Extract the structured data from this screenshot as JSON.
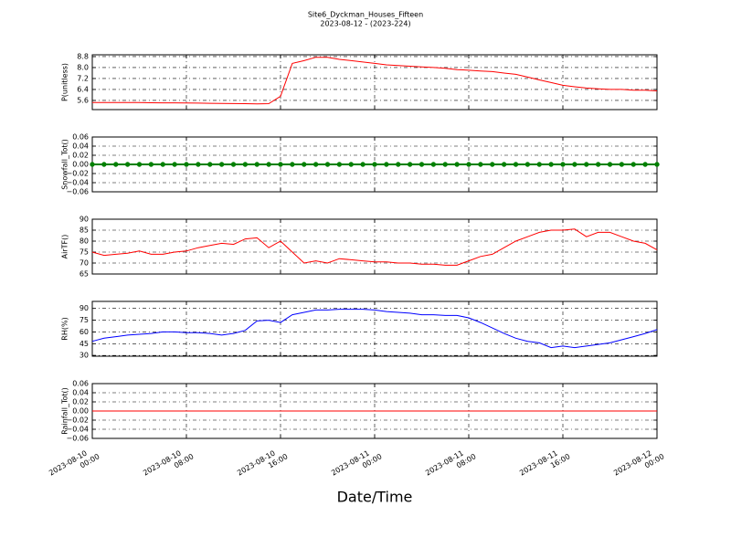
{
  "title": "Site6_Dyckman_Houses_Fifteen",
  "subtitle": "2023-08-12 - (2023-224)",
  "xlabel": "Date/Time",
  "x": [
    "2023-08-10 00:00",
    "2023-08-10 01:00",
    "2023-08-10 02:00",
    "2023-08-10 03:00",
    "2023-08-10 04:00",
    "2023-08-10 05:00",
    "2023-08-10 06:00",
    "2023-08-10 07:00",
    "2023-08-10 08:00",
    "2023-08-10 09:00",
    "2023-08-10 10:00",
    "2023-08-10 11:00",
    "2023-08-10 12:00",
    "2023-08-10 13:00",
    "2023-08-10 14:00",
    "2023-08-10 15:00",
    "2023-08-10 16:00",
    "2023-08-10 17:00",
    "2023-08-10 18:00",
    "2023-08-10 19:00",
    "2023-08-10 20:00",
    "2023-08-10 21:00",
    "2023-08-10 22:00",
    "2023-08-10 23:00",
    "2023-08-11 00:00",
    "2023-08-11 01:00",
    "2023-08-11 02:00",
    "2023-08-11 03:00",
    "2023-08-11 04:00",
    "2023-08-11 05:00",
    "2023-08-11 06:00",
    "2023-08-11 07:00",
    "2023-08-11 08:00",
    "2023-08-11 09:00",
    "2023-08-11 10:00",
    "2023-08-11 11:00",
    "2023-08-11 12:00",
    "2023-08-11 13:00",
    "2023-08-11 14:00",
    "2023-08-11 15:00",
    "2023-08-11 16:00",
    "2023-08-11 17:00",
    "2023-08-11 18:00",
    "2023-08-11 19:00",
    "2023-08-11 20:00",
    "2023-08-11 21:00",
    "2023-08-11 22:00",
    "2023-08-11 23:00",
    "2023-08-12 00:00"
  ],
  "xlim": [
    "2023-08-10 00:00",
    "2023-08-12 00:00"
  ],
  "xticks": [
    "2023-08-10 00:00",
    "2023-08-10 08:00",
    "2023-08-10 16:00",
    "2023-08-11 00:00",
    "2023-08-11 08:00",
    "2023-08-11 16:00",
    "2023-08-12 00:00"
  ],
  "grid": true,
  "chart_data": [
    {
      "type": "line",
      "ylabel": "P(unitless)",
      "ylim": [
        4.93,
        8.93
      ],
      "yticks": [
        5.6,
        6.4,
        7.2,
        {
          "value": 8,
          "label": "8.0"
        },
        8.8
      ],
      "series": [
        {
          "color": "#ff0000",
          "values": [
            5.45,
            5.45,
            5.44,
            5.45,
            5.44,
            5.43,
            5.42,
            5.42,
            5.41,
            5.4,
            5.39,
            5.38,
            5.37,
            5.36,
            5.35,
            5.36,
            5.9,
            8.3,
            8.5,
            8.75,
            8.75,
            8.6,
            8.5,
            8.4,
            8.3,
            8.2,
            8.15,
            8.1,
            8.05,
            8.0,
            7.95,
            7.85,
            7.8,
            7.75,
            7.7,
            7.6,
            7.5,
            7.3,
            7.1,
            6.9,
            6.7,
            6.6,
            6.5,
            6.45,
            6.4,
            6.4,
            6.35,
            6.35,
            6.3
          ]
        }
      ]
    },
    {
      "type": "line",
      "ylabel": "Snowfall_Tot()",
      "ylim": [
        -0.06,
        0.06
      ],
      "markers": true,
      "yticks": [
        {
          "value": -0.06,
          "label": "−0.06"
        },
        {
          "value": -0.04,
          "label": "−0.04"
        },
        {
          "value": -0.02,
          "label": "−0.02"
        },
        {
          "value": 0,
          "label": "0.00"
        },
        0.02,
        0.04,
        0.06
      ],
      "series": [
        {
          "color": "#008000",
          "values": [
            0,
            0,
            0,
            0,
            0,
            0,
            0,
            0,
            0,
            0,
            0,
            0,
            0,
            0,
            0,
            0,
            0,
            0,
            0,
            0,
            0,
            0,
            0,
            0,
            0,
            0,
            0,
            0,
            0,
            0,
            0,
            0,
            0,
            0,
            0,
            0,
            0,
            0,
            0,
            0,
            0,
            0,
            0,
            0,
            0,
            0,
            0,
            0,
            0
          ]
        }
      ]
    },
    {
      "type": "line",
      "ylabel": "AirTF()",
      "ylim": [
        65,
        90
      ],
      "yticks": [
        65,
        70,
        75,
        80,
        85,
        90
      ],
      "series": [
        {
          "color": "#ff0000",
          "values": [
            75,
            73.5,
            74,
            74.5,
            75.5,
            74,
            74,
            75,
            75.5,
            77,
            78,
            79,
            78.5,
            81,
            81.5,
            77,
            80,
            75,
            70,
            71,
            70,
            72,
            71.5,
            71,
            70.5,
            70.5,
            70,
            70,
            69.5,
            69.5,
            69,
            69,
            71,
            73,
            74,
            77,
            80,
            82,
            84,
            85,
            85,
            85.5,
            82,
            84,
            84,
            82,
            80,
            79,
            76
          ]
        }
      ]
    },
    {
      "type": "line",
      "ylabel": "RH(%)",
      "ylim": [
        29,
        99
      ],
      "yticks": [
        30,
        45,
        60,
        75,
        90
      ],
      "series": [
        {
          "color": "#0000ff",
          "values": [
            48,
            52,
            54,
            56,
            57,
            58,
            60,
            60,
            59,
            59,
            58,
            56,
            58,
            62,
            74,
            75,
            72,
            82,
            85,
            88,
            88,
            89,
            89,
            89,
            88,
            86,
            85,
            84,
            82,
            82,
            81,
            81,
            78,
            72,
            65,
            58,
            52,
            48,
            46,
            40,
            42,
            40,
            42,
            44,
            46,
            50,
            54,
            58,
            63
          ]
        }
      ]
    },
    {
      "type": "line",
      "ylabel": "Rainfall_Tot()",
      "ylim": [
        -0.06,
        0.06
      ],
      "yticks": [
        {
          "value": -0.06,
          "label": "−0.06"
        },
        {
          "value": -0.04,
          "label": "−0.04"
        },
        {
          "value": -0.02,
          "label": "−0.02"
        },
        {
          "value": 0,
          "label": "0.00"
        },
        0.02,
        0.04,
        0.06
      ],
      "series": [
        {
          "color": "#ff0000",
          "values": [
            0,
            0,
            0,
            0,
            0,
            0,
            0,
            0,
            0,
            0,
            0,
            0,
            0,
            0,
            0,
            0,
            0,
            0,
            0,
            0,
            0,
            0,
            0,
            0,
            0,
            0,
            0,
            0,
            0,
            0,
            0,
            0,
            0,
            0,
            0,
            0,
            0,
            0,
            0,
            0,
            0,
            0,
            0,
            0,
            0,
            0,
            0,
            0,
            0
          ]
        }
      ]
    }
  ]
}
